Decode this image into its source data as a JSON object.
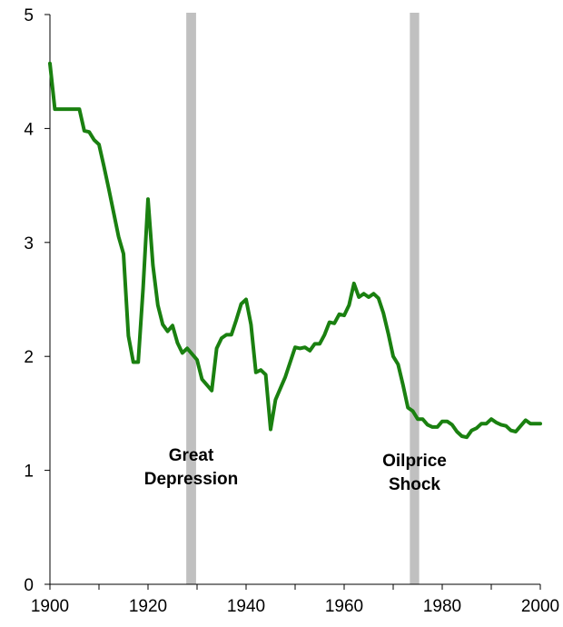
{
  "chart_data": {
    "type": "line",
    "title": "",
    "xlabel": "",
    "ylabel": "",
    "xlim": [
      1900,
      2000
    ],
    "ylim": [
      0,
      5
    ],
    "x_ticks": [
      1900,
      1920,
      1940,
      1960,
      1980,
      2000
    ],
    "y_ticks": [
      0,
      1,
      2,
      3,
      4,
      5
    ],
    "grid": false,
    "line_color": "#1a8010",
    "band_color": "#c0c0c0",
    "shaded_periods": [
      {
        "label_lines": [
          "Great",
          "Depression"
        ],
        "start": 1927.8,
        "end": 1929.8
      },
      {
        "label_lines": [
          "Oilprice",
          "Shock"
        ],
        "start": 1973.4,
        "end": 1975.3
      }
    ],
    "series": [
      {
        "x": [
          1900,
          1901,
          1902,
          1903,
          1904,
          1905,
          1906,
          1907,
          1908,
          1909,
          1910,
          1911,
          1912,
          1913,
          1914,
          1915,
          1916,
          1917,
          1918,
          1919,
          1920,
          1921,
          1922,
          1923,
          1924,
          1925,
          1926,
          1927,
          1928,
          1929,
          1930,
          1931,
          1932,
          1933,
          1934,
          1935,
          1936,
          1937,
          1938,
          1939,
          1940,
          1941,
          1942,
          1943,
          1944,
          1945,
          1946,
          1947,
          1948,
          1949,
          1950,
          1951,
          1952,
          1953,
          1954,
          1955,
          1956,
          1957,
          1958,
          1959,
          1960,
          1961,
          1962,
          1963,
          1964,
          1965,
          1966,
          1967,
          1968,
          1969,
          1970,
          1971,
          1972,
          1973,
          1974,
          1975,
          1976,
          1977,
          1978,
          1979,
          1980,
          1981,
          1982,
          1983,
          1984,
          1985,
          1986,
          1987,
          1988,
          1989,
          1990,
          1991,
          1992,
          1993,
          1994,
          1995,
          1996,
          1997,
          1998,
          1999,
          2000
        ],
        "values": [
          4.57,
          4.17,
          4.17,
          4.17,
          4.17,
          4.17,
          4.17,
          3.98,
          3.97,
          3.9,
          3.86,
          3.67,
          3.47,
          3.26,
          3.05,
          2.9,
          2.18,
          1.95,
          1.95,
          2.6,
          3.38,
          2.8,
          2.45,
          2.28,
          2.22,
          2.27,
          2.12,
          2.03,
          2.07,
          2.02,
          1.97,
          1.8,
          1.75,
          1.7,
          2.07,
          2.16,
          2.19,
          2.19,
          2.32,
          2.46,
          2.5,
          2.28,
          1.86,
          1.88,
          1.84,
          1.36,
          1.62,
          1.72,
          1.82,
          1.95,
          2.08,
          2.07,
          2.08,
          2.05,
          2.11,
          2.11,
          2.19,
          2.3,
          2.29,
          2.37,
          2.36,
          2.45,
          2.64,
          2.52,
          2.55,
          2.52,
          2.55,
          2.51,
          2.38,
          2.2,
          2.0,
          1.93,
          1.75,
          1.55,
          1.52,
          1.45,
          1.45,
          1.4,
          1.38,
          1.38,
          1.43,
          1.43,
          1.4,
          1.34,
          1.3,
          1.29,
          1.35,
          1.37,
          1.41,
          1.41,
          1.45,
          1.42,
          1.4,
          1.39,
          1.35,
          1.34,
          1.39,
          1.44,
          1.41,
          1.41,
          1.41
        ]
      }
    ]
  }
}
